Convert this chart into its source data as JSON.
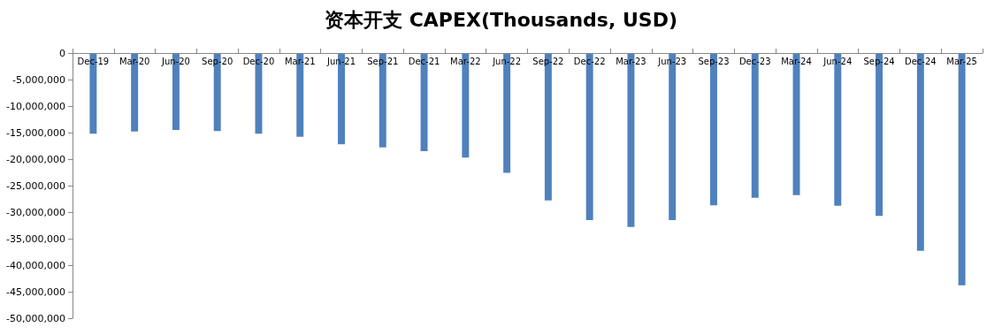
{
  "chart_data": {
    "type": "bar",
    "title": "资本开支 CAPEX(Thousands, USD)",
    "categories": [
      "Dec-19",
      "Mar-20",
      "Jun-20",
      "Sep-20",
      "Dec-20",
      "Mar-21",
      "Jun-21",
      "Sep-21",
      "Dec-21",
      "Mar-22",
      "Jun-22",
      "Sep-22",
      "Dec-22",
      "Mar-23",
      "Jun-23",
      "Sep-23",
      "Dec-23",
      "Mar-24",
      "Jun-24",
      "Sep-24",
      "Dec-24",
      "Mar-25"
    ],
    "values": [
      -15200000,
      -14800000,
      -14500000,
      -14700000,
      -15200000,
      -15800000,
      -17200000,
      -17800000,
      -18500000,
      -19700000,
      -22600000,
      -27800000,
      -31500000,
      -32800000,
      -31500000,
      -28700000,
      -27300000,
      -26800000,
      -28800000,
      -30700000,
      -37300000,
      -43800000
    ],
    "color": "#4f81bd",
    "ylim": [
      -50000000,
      0
    ],
    "yticks": [
      {
        "value": -50000000,
        "label": "-50,000,000"
      },
      {
        "value": -45000000,
        "label": "-45,000,000"
      },
      {
        "value": -40000000,
        "label": "-40,000,000"
      },
      {
        "value": -35000000,
        "label": "-35,000,000"
      },
      {
        "value": -30000000,
        "label": "-30,000,000"
      },
      {
        "value": -25000000,
        "label": "-25,000,000"
      },
      {
        "value": -20000000,
        "label": "-20,000,000"
      },
      {
        "value": -15000000,
        "label": "-15,000,000"
      },
      {
        "value": -10000000,
        "label": "-10,000,000"
      },
      {
        "value": -5000000,
        "label": "-5,000,000"
      },
      0
    ],
    "grid": false
  }
}
